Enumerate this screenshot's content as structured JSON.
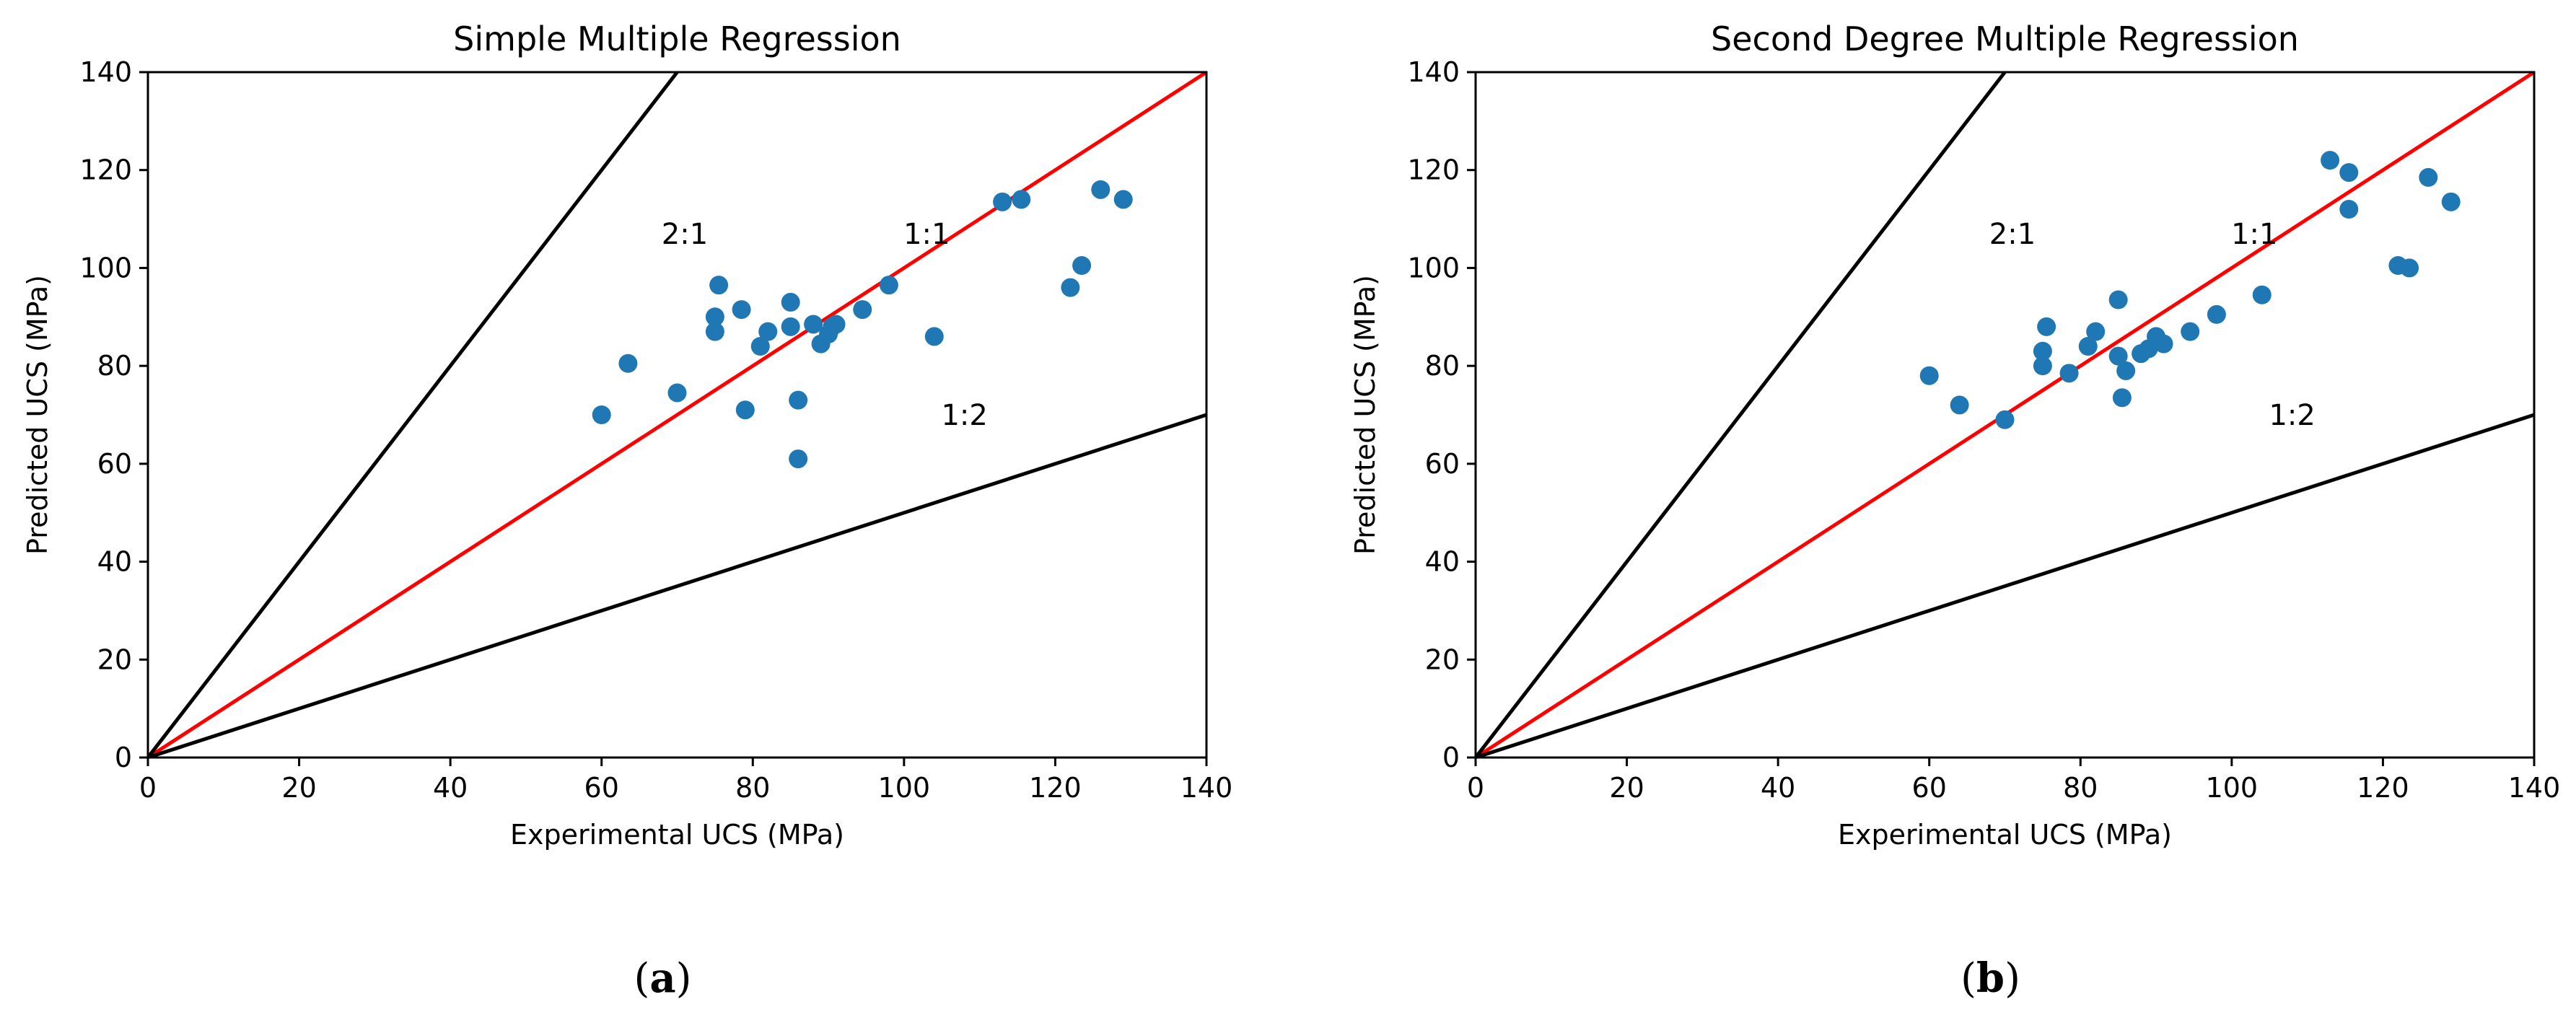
{
  "chart_data": [
    {
      "type": "scatter",
      "title": "Simple Multiple Regression",
      "xlabel": "Experimental UCS (MPa)",
      "ylabel": "Predicted UCS (MPa)",
      "xlim": [
        0,
        140
      ],
      "ylim": [
        0,
        140
      ],
      "xticks": [
        "0",
        "20",
        "40",
        "60",
        "80",
        "100",
        "120",
        "140"
      ],
      "yticks": [
        "0",
        "20",
        "40",
        "60",
        "80",
        "100",
        "120",
        "140"
      ],
      "caption_letter": "a",
      "point_color": "#1f77b4",
      "lines": [
        {
          "name": "1:1",
          "slope": 1,
          "color": "#ff0000",
          "label_at": [
            103,
            107
          ]
        },
        {
          "name": "2:1",
          "slope": 2,
          "color": "#000000",
          "label_at": [
            71,
            107
          ]
        },
        {
          "name": "1:2",
          "slope": 0.5,
          "color": "#000000",
          "label_at": [
            108,
            70
          ]
        }
      ],
      "points": [
        [
          60.0,
          70.0
        ],
        [
          63.5,
          80.5
        ],
        [
          70.0,
          74.5
        ],
        [
          75.0,
          90.0
        ],
        [
          75.0,
          87.0
        ],
        [
          75.5,
          96.5
        ],
        [
          78.5,
          91.5
        ],
        [
          79.0,
          71.0
        ],
        [
          81.0,
          84.0
        ],
        [
          82.0,
          87.0
        ],
        [
          85.0,
          93.0
        ],
        [
          85.0,
          88.0
        ],
        [
          86.0,
          61.0
        ],
        [
          86.0,
          73.0
        ],
        [
          88.0,
          88.5
        ],
        [
          89.0,
          84.5
        ],
        [
          90.0,
          86.5
        ],
        [
          90.5,
          88.0
        ],
        [
          91.0,
          88.5
        ],
        [
          94.5,
          91.5
        ],
        [
          98.0,
          96.5
        ],
        [
          104.0,
          86.0
        ],
        [
          113.0,
          113.5
        ],
        [
          115.5,
          114.0
        ],
        [
          122.0,
          96.0
        ],
        [
          123.5,
          100.5
        ],
        [
          126.0,
          116.0
        ],
        [
          129.0,
          114.0
        ]
      ]
    },
    {
      "type": "scatter",
      "title": "Second Degree Multiple Regression",
      "xlabel": "Experimental UCS (MPa)",
      "ylabel": "Predicted UCS (MPa)",
      "xlim": [
        0,
        140
      ],
      "ylim": [
        0,
        140
      ],
      "xticks": [
        "0",
        "20",
        "40",
        "60",
        "80",
        "100",
        "120",
        "140"
      ],
      "yticks": [
        "0",
        "20",
        "40",
        "60",
        "80",
        "100",
        "120",
        "140"
      ],
      "caption_letter": "b",
      "point_color": "#1f77b4",
      "lines": [
        {
          "name": "1:1",
          "slope": 1,
          "color": "#ff0000",
          "label_at": [
            103,
            107
          ]
        },
        {
          "name": "2:1",
          "slope": 2,
          "color": "#000000",
          "label_at": [
            71,
            107
          ]
        },
        {
          "name": "1:2",
          "slope": 0.5,
          "color": "#000000",
          "label_at": [
            108,
            70
          ]
        }
      ],
      "points": [
        [
          60.0,
          78.0
        ],
        [
          64.0,
          72.0
        ],
        [
          70.0,
          69.0
        ],
        [
          75.0,
          83.0
        ],
        [
          75.0,
          80.0
        ],
        [
          75.5,
          88.0
        ],
        [
          78.5,
          78.5
        ],
        [
          81.0,
          84.0
        ],
        [
          82.0,
          87.0
        ],
        [
          85.0,
          93.5
        ],
        [
          85.0,
          82.0
        ],
        [
          85.5,
          73.5
        ],
        [
          86.0,
          79.0
        ],
        [
          88.0,
          82.5
        ],
        [
          89.0,
          83.5
        ],
        [
          90.0,
          86.0
        ],
        [
          91.0,
          84.5
        ],
        [
          94.5,
          87.0
        ],
        [
          98.0,
          90.5
        ],
        [
          104.0,
          94.5
        ],
        [
          113.0,
          122.0
        ],
        [
          115.5,
          119.5
        ],
        [
          115.5,
          112.0
        ],
        [
          122.0,
          100.5
        ],
        [
          123.5,
          100.0
        ],
        [
          126.0,
          118.5
        ],
        [
          129.0,
          113.5
        ]
      ]
    }
  ]
}
